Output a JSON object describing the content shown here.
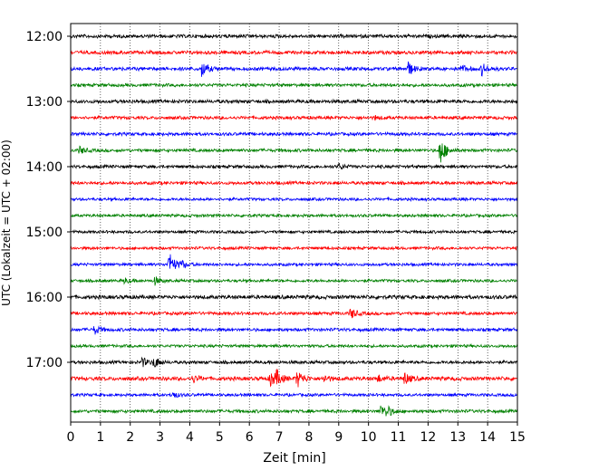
{
  "chart_data": {
    "type": "line",
    "title": "",
    "xlabel": "Zeit  [min]",
    "ylabel": "UTC (Lokalzeit = UTC + 02:00)",
    "xlim": [
      0,
      15
    ],
    "x_ticks": [
      "0",
      "1",
      "2",
      "3",
      "4",
      "5",
      "6",
      "7",
      "8",
      "9",
      "10",
      "11",
      "12",
      "13",
      "14",
      "15"
    ],
    "y_tick_labels": [
      "12:00",
      "13:00",
      "14:00",
      "15:00",
      "16:00",
      "17:00"
    ],
    "grid": "vertical dotted",
    "trace_colors": [
      "#000000",
      "#ff0000",
      "#0000ff",
      "#008000"
    ],
    "traces": [
      {
        "start": "12:00",
        "color": "#000000",
        "noise": 2.2,
        "events": []
      },
      {
        "start": "12:15",
        "color": "#ff0000",
        "noise": 2.2,
        "events": []
      },
      {
        "start": "12:30",
        "color": "#0000ff",
        "noise": 2.2,
        "events": [
          {
            "t": 4.4,
            "amp": 9
          },
          {
            "t": 11.3,
            "amp": 9
          },
          {
            "t": 13.1,
            "amp": 4
          },
          {
            "t": 13.8,
            "amp": 7
          }
        ]
      },
      {
        "start": "12:45",
        "color": "#008000",
        "noise": 2.0,
        "events": []
      },
      {
        "start": "13:00",
        "color": "#000000",
        "noise": 2.2,
        "events": []
      },
      {
        "start": "13:15",
        "color": "#ff0000",
        "noise": 2.0,
        "events": [
          {
            "t": 10.2,
            "amp": 2
          }
        ]
      },
      {
        "start": "13:30",
        "color": "#0000ff",
        "noise": 2.0,
        "events": []
      },
      {
        "start": "13:45",
        "color": "#008000",
        "noise": 2.0,
        "events": [
          {
            "t": 0.3,
            "amp": 4
          },
          {
            "t": 12.4,
            "amp": 16
          }
        ]
      },
      {
        "start": "14:00",
        "color": "#000000",
        "noise": 2.0,
        "events": [
          {
            "t": 9.0,
            "amp": 3
          }
        ]
      },
      {
        "start": "14:15",
        "color": "#ff0000",
        "noise": 2.0,
        "events": []
      },
      {
        "start": "14:30",
        "color": "#0000ff",
        "noise": 1.8,
        "events": []
      },
      {
        "start": "14:45",
        "color": "#008000",
        "noise": 1.8,
        "events": []
      },
      {
        "start": "15:00",
        "color": "#000000",
        "noise": 1.8,
        "events": []
      },
      {
        "start": "15:15",
        "color": "#ff0000",
        "noise": 1.8,
        "events": []
      },
      {
        "start": "15:30",
        "color": "#0000ff",
        "noise": 1.8,
        "events": [
          {
            "t": 3.3,
            "amp": 14
          },
          {
            "t": 3.7,
            "amp": 4
          }
        ]
      },
      {
        "start": "15:45",
        "color": "#008000",
        "noise": 1.8,
        "events": [
          {
            "t": 1.8,
            "amp": 3
          },
          {
            "t": 2.8,
            "amp": 5
          }
        ]
      },
      {
        "start": "16:00",
        "color": "#000000",
        "noise": 2.4,
        "events": []
      },
      {
        "start": "16:15",
        "color": "#ff0000",
        "noise": 2.0,
        "events": [
          {
            "t": 9.4,
            "amp": 6
          }
        ]
      },
      {
        "start": "16:30",
        "color": "#0000ff",
        "noise": 2.0,
        "events": [
          {
            "t": 0.8,
            "amp": 5
          }
        ]
      },
      {
        "start": "16:45",
        "color": "#008000",
        "noise": 1.8,
        "events": []
      },
      {
        "start": "17:00",
        "color": "#000000",
        "noise": 2.0,
        "events": [
          {
            "t": 2.4,
            "amp": 5
          },
          {
            "t": 2.8,
            "amp": 6
          }
        ]
      },
      {
        "start": "17:15",
        "color": "#ff0000",
        "noise": 2.4,
        "events": [
          {
            "t": 4.1,
            "amp": 4
          },
          {
            "t": 6.7,
            "amp": 9
          },
          {
            "t": 6.9,
            "amp": 7
          },
          {
            "t": 7.6,
            "amp": 10
          },
          {
            "t": 8.5,
            "amp": 4
          },
          {
            "t": 10.3,
            "amp": 4
          },
          {
            "t": 11.2,
            "amp": 7
          }
        ]
      },
      {
        "start": "17:30",
        "color": "#0000ff",
        "noise": 1.8,
        "events": [
          {
            "t": 3.4,
            "amp": 4
          }
        ]
      },
      {
        "start": "17:45",
        "color": "#008000",
        "noise": 2.0,
        "events": [
          {
            "t": 10.4,
            "amp": 7
          },
          {
            "t": 10.6,
            "amp": 5
          }
        ]
      }
    ]
  }
}
